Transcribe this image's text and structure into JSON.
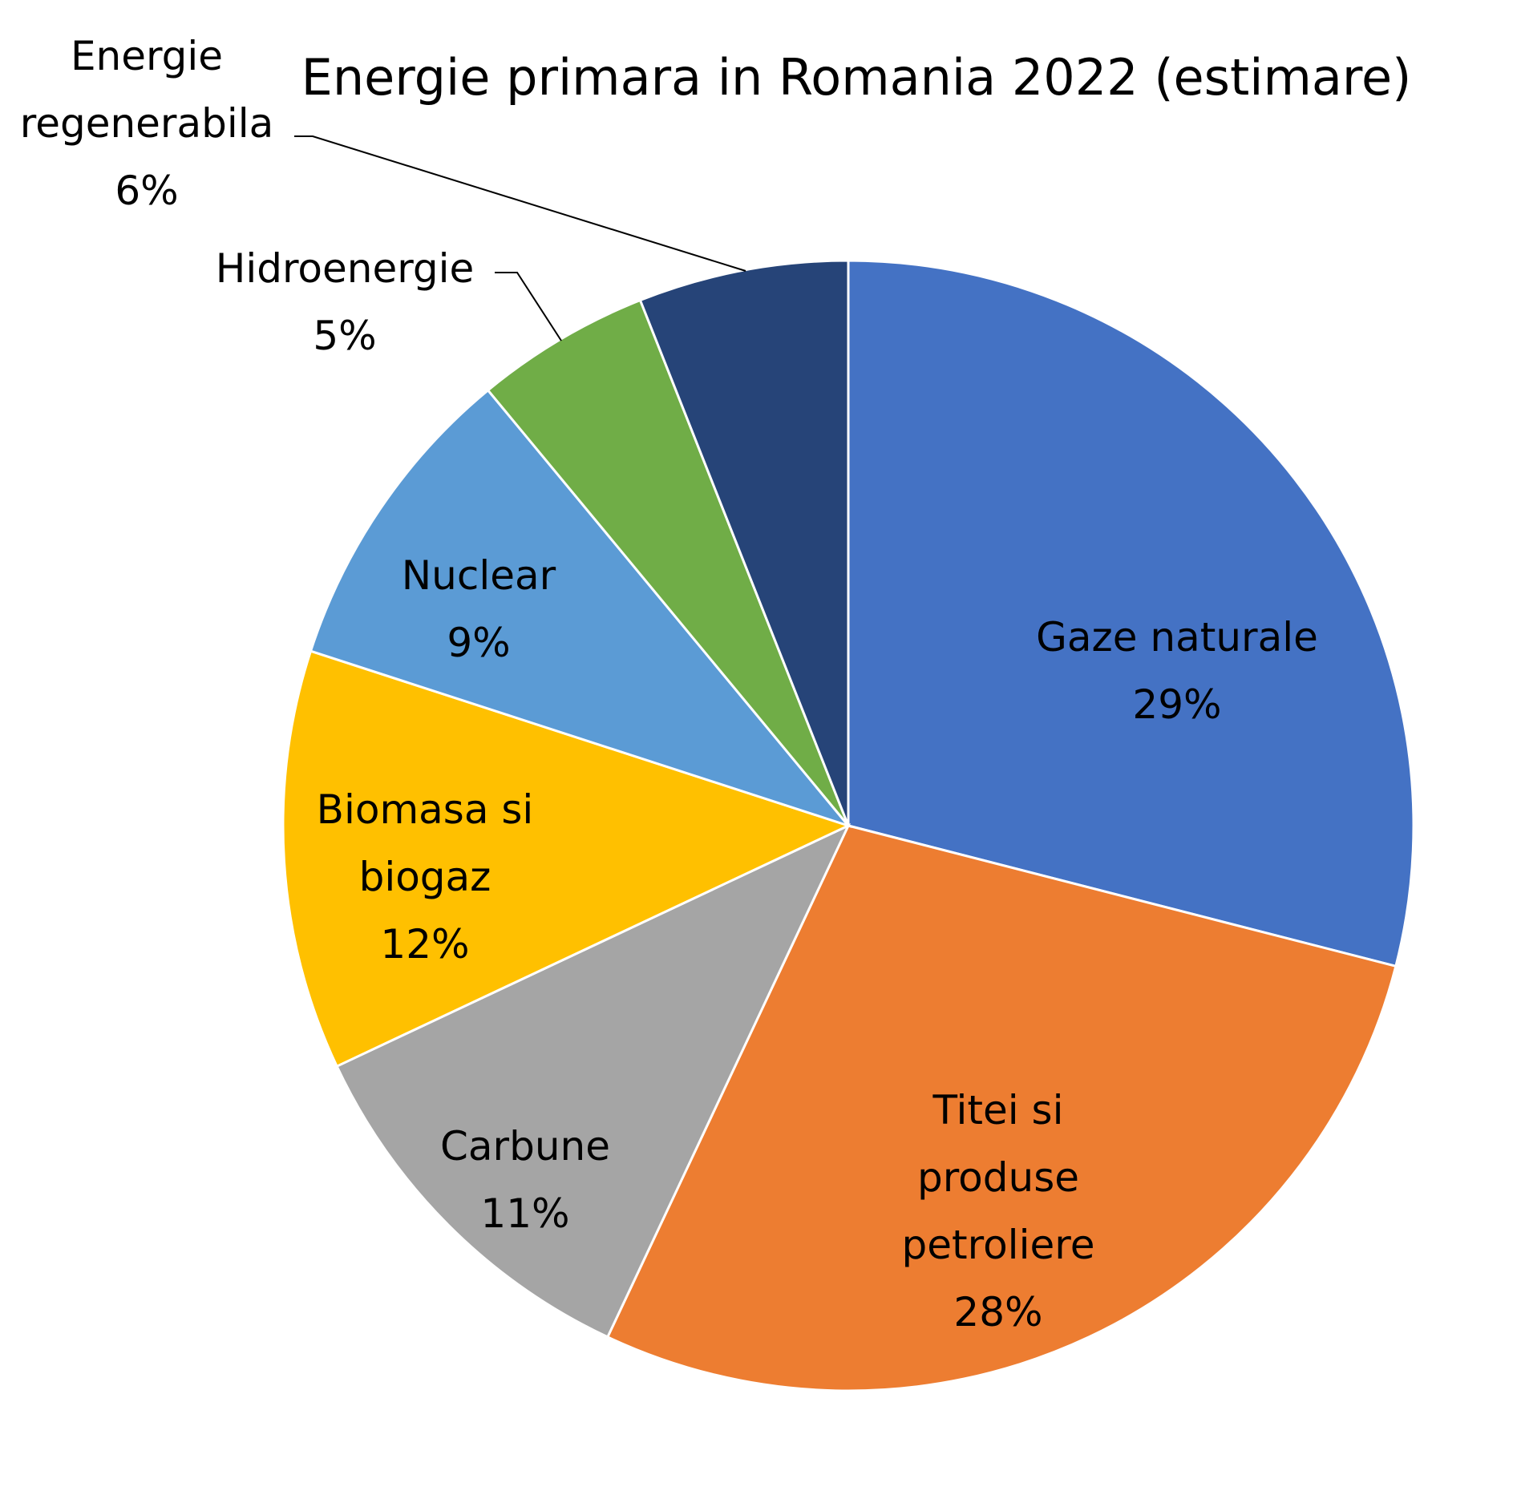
{
  "chart_data": {
    "type": "pie",
    "title": "Energie primara in Romania 2022 (estimare)",
    "slices": [
      {
        "name": "Gaze naturale",
        "lines": [
          "Gaze naturale"
        ],
        "value": 29,
        "pct_label": "29%",
        "color": "#4472C4"
      },
      {
        "name": "Titei si produse petroliere",
        "lines": [
          "Titei si",
          "produse",
          "petroliere"
        ],
        "value": 28,
        "pct_label": "28%",
        "color": "#ED7D31"
      },
      {
        "name": "Carbune",
        "lines": [
          "Carbune"
        ],
        "value": 11,
        "pct_label": "11%",
        "color": "#A5A5A5"
      },
      {
        "name": "Biomasa si biogaz",
        "lines": [
          "Biomasa si",
          "biogaz"
        ],
        "value": 12,
        "pct_label": "12%",
        "color": "#FFC000"
      },
      {
        "name": "Nuclear",
        "lines": [
          "Nuclear"
        ],
        "value": 9,
        "pct_label": "9%",
        "color": "#5B9BD5"
      },
      {
        "name": "Hidroenergie",
        "lines": [
          "Hidroenergie"
        ],
        "value": 5,
        "pct_label": "5%",
        "color": "#70AD47"
      },
      {
        "name": "Energie regenerabila",
        "lines": [
          "Energie",
          "regenerabila"
        ],
        "value": 6,
        "pct_label": "6%",
        "color": "#264478"
      }
    ],
    "start_angle_deg": 0,
    "direction": "clockwise",
    "legend": "none",
    "data_labels": "category name and percentage"
  }
}
